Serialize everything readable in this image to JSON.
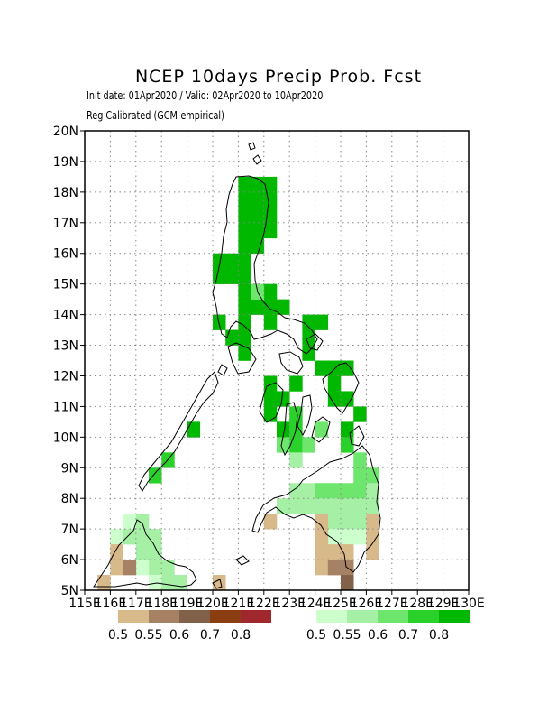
{
  "title": "NCEP 10days Precip Prob. Fcst",
  "subtitle_line1": "Init date: 01Apr2020 / Valid: 02Apr2020 to 10Apr2020",
  "subtitle_line2": "Reg Calibrated (GCM-empirical)",
  "map": {
    "lon_range": [
      115,
      130
    ],
    "lat_range": [
      5,
      20
    ],
    "lat_ticks": [
      "5N",
      "6N",
      "7N",
      "8N",
      "9N",
      "10N",
      "11N",
      "12N",
      "13N",
      "14N",
      "15N",
      "16N",
      "17N",
      "18N",
      "19N",
      "20N"
    ],
    "lon_ticks": [
      "115E",
      "116E",
      "117E",
      "118E",
      "119E",
      "120E",
      "121E",
      "122E",
      "123E",
      "124E",
      "125E",
      "126E",
      "127E",
      "128E",
      "129E",
      "130E"
    ],
    "grid": "dotted",
    "cell_deg": 0.5
  },
  "legend": {
    "dry": {
      "colors": [
        "#d7b98a",
        "#a68163",
        "#82614a",
        "#8a3e12",
        "#a0282c"
      ],
      "labels": [
        "0.5",
        "0.55",
        "0.6",
        "0.7",
        "0.8"
      ]
    },
    "wet": {
      "colors": [
        "#ccffcc",
        "#a6f0a6",
        "#6ee66e",
        "#2bd12b",
        "#00b800"
      ],
      "labels": [
        "0.5",
        "0.55",
        "0.6",
        "0.7",
        "0.8"
      ]
    }
  },
  "cells": {
    "wet5": [
      [
        121,
        18
      ],
      [
        121.5,
        18
      ],
      [
        122,
        18
      ],
      [
        121,
        17.5
      ],
      [
        121.5,
        17.5
      ],
      [
        122,
        17.5
      ],
      [
        121,
        17
      ],
      [
        121.5,
        17
      ],
      [
        122,
        17
      ],
      [
        121,
        16.5
      ],
      [
        121.5,
        16.5
      ],
      [
        122,
        16.5
      ],
      [
        121,
        16
      ],
      [
        121.5,
        16
      ],
      [
        120,
        15.5
      ],
      [
        120.5,
        15.5
      ],
      [
        121,
        15.5
      ],
      [
        120,
        15
      ],
      [
        120.5,
        15
      ],
      [
        121,
        15
      ],
      [
        121,
        14.5
      ],
      [
        122,
        14.5
      ],
      [
        121,
        14
      ],
      [
        121.5,
        14
      ],
      [
        122,
        14
      ],
      [
        122.5,
        14
      ],
      [
        120,
        13.5
      ],
      [
        121,
        13.5
      ],
      [
        122,
        13.5
      ],
      [
        123.5,
        13.5
      ],
      [
        124,
        13.5
      ],
      [
        120.5,
        13
      ],
      [
        121,
        13
      ],
      [
        123.5,
        13
      ],
      [
        121,
        12.5
      ],
      [
        123.5,
        12.5
      ],
      [
        124,
        12
      ],
      [
        124.5,
        12
      ],
      [
        125,
        12
      ],
      [
        122,
        11.5
      ],
      [
        123,
        11.5
      ],
      [
        124.5,
        11.5
      ],
      [
        122,
        11
      ],
      [
        122.5,
        11
      ],
      [
        124.5,
        11
      ],
      [
        125,
        11
      ],
      [
        122,
        10.5
      ],
      [
        125.5,
        10.5
      ],
      [
        122.5,
        10
      ],
      [
        119,
        10
      ],
      [
        125,
        10
      ]
    ],
    "wet4": [
      [
        123,
        10.5
      ],
      [
        123,
        10
      ],
      [
        123,
        9.5
      ],
      [
        125,
        9.5
      ],
      [
        118,
        9
      ],
      [
        117.5,
        8.5
      ]
    ],
    "wet3": [
      [
        122.5,
        9.5
      ],
      [
        123.5,
        9.5
      ],
      [
        124,
        10
      ],
      [
        125.5,
        9
      ],
      [
        125.5,
        8.5
      ],
      [
        126,
        8.5
      ],
      [
        124,
        8
      ],
      [
        124.5,
        8
      ],
      [
        125,
        8
      ],
      [
        125.5,
        8
      ],
      [
        121.5,
        14.5
      ]
    ],
    "wet2": [
      [
        123,
        9
      ],
      [
        123,
        8
      ],
      [
        123.5,
        8
      ],
      [
        122.5,
        7.5
      ],
      [
        123,
        7.5
      ],
      [
        123.5,
        7.5
      ],
      [
        124,
        7.5
      ],
      [
        124.5,
        7.5
      ],
      [
        125,
        7.5
      ],
      [
        125.5,
        7.5
      ],
      [
        126,
        8
      ],
      [
        126,
        7.5
      ],
      [
        124.5,
        7
      ],
      [
        125,
        7
      ],
      [
        125.5,
        7
      ],
      [
        116.5,
        6.5
      ],
      [
        117,
        6.5
      ],
      [
        117.5,
        6.5
      ],
      [
        117,
        7
      ],
      [
        117,
        6
      ],
      [
        117.5,
        6
      ],
      [
        117.5,
        5.5
      ],
      [
        118,
        5.5
      ],
      [
        118,
        5
      ],
      [
        118.5,
        5
      ]
    ],
    "wet1": [
      [
        126,
        7
      ],
      [
        116,
        6.5
      ],
      [
        116.5,
        7
      ],
      [
        125,
        6.5
      ],
      [
        125.5,
        6.5
      ],
      [
        124.5,
        6.5
      ],
      [
        117,
        5.5
      ],
      [
        117.5,
        5
      ]
    ],
    "dry1": [
      [
        124,
        7
      ],
      [
        124,
        6.5
      ],
      [
        124,
        6
      ],
      [
        124,
        5.5
      ],
      [
        124.5,
        5.5
      ],
      [
        125,
        6
      ],
      [
        126,
        7
      ],
      [
        126,
        6.5
      ],
      [
        126,
        6
      ],
      [
        122,
        7
      ],
      [
        116,
        6
      ],
      [
        116,
        5.5
      ],
      [
        115.5,
        5
      ],
      [
        120,
        5
      ],
      [
        124.5,
        6
      ]
    ],
    "dry2": [
      [
        116.5,
        5.5
      ],
      [
        124.5,
        5.5
      ],
      [
        125,
        5.5
      ]
    ],
    "dry3": [
      [
        125,
        5
      ]
    ]
  }
}
